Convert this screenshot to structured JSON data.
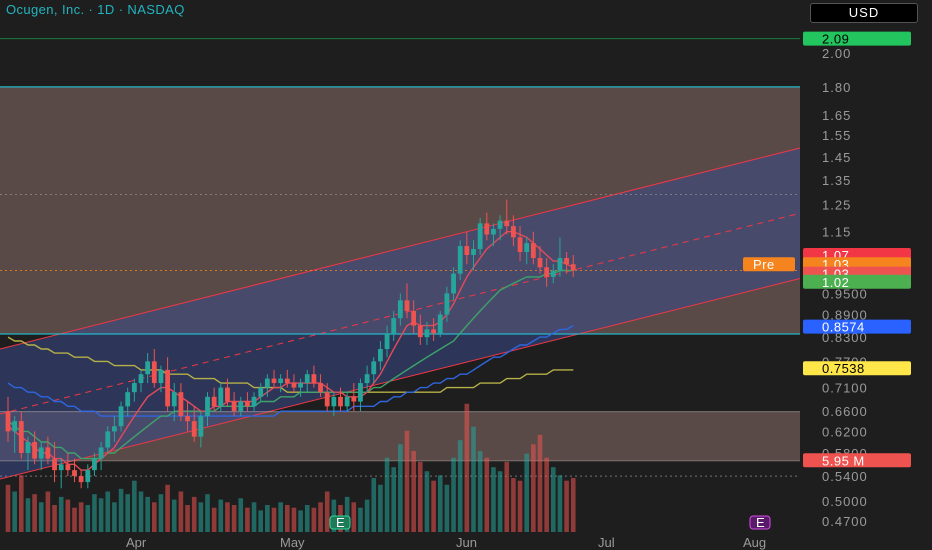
{
  "header": {
    "title": "Ocugen, Inc. · 1D · NASDAQ",
    "currency": "USD"
  },
  "colors": {
    "background": "#1e1e1e",
    "up": "#26a69a",
    "down": "#ef5350",
    "channel_line": "#f23645",
    "channel_fill": "#3a4a8a",
    "zone_fill": "#6e5a55",
    "level_line": "#22c3d6",
    "ma_fast": "#e24b5a",
    "ma_mid": "#3ea36a",
    "ma_slow": "#2f66e0",
    "ma_long": "#b5b048"
  },
  "chart_data": {
    "type": "candlestick",
    "title": "Ocugen, Inc. · 1D · NASDAQ",
    "y_scale": "log",
    "ylim": [
      0.45,
      2.2
    ],
    "y_ticks": [
      "2.00",
      "1.80",
      "1.65",
      "1.55",
      "1.45",
      "1.35",
      "1.25",
      "1.15",
      "0.9500",
      "0.8900",
      "0.8300",
      "0.7700",
      "0.7100",
      "0.6600",
      "0.6200",
      "0.5800",
      "0.5400",
      "0.5000",
      "0.4700"
    ],
    "x_ticks": [
      "Apr",
      "May",
      "Jun",
      "Jul",
      "Aug"
    ],
    "price_tags": [
      {
        "label": "2.09",
        "value": 2.09,
        "bg": "#22c55e",
        "fg": "#000000"
      },
      {
        "label": "1.07",
        "value": 1.07,
        "bg": "#f23645",
        "fg": "#ffffff"
      },
      {
        "label": "1.03",
        "value": 1.04,
        "bg": "#f5841f",
        "fg": "#ffffff"
      },
      {
        "label": "1.03",
        "value": 1.01,
        "bg": "#ef5350",
        "fg": "#ffffff"
      },
      {
        "label": "1.02",
        "value": 0.985,
        "bg": "#4caf50",
        "fg": "#ffffff"
      },
      {
        "label": "0.8574",
        "value": 0.8574,
        "bg": "#2962ff",
        "fg": "#ffffff"
      },
      {
        "label": "0.7538",
        "value": 0.7538,
        "bg": "#ffe74a",
        "fg": "#000000"
      },
      {
        "label": "5.95 M",
        "value": 0.567,
        "bg": "#ef5350",
        "fg": "#ffffff"
      }
    ],
    "pre_label": "Pre",
    "earnings_marker": "E",
    "levels": [
      1.8,
      0.838,
      0.659,
      0.566
    ],
    "candles": [
      [
        0.66,
        0.69,
        0.6,
        0.62
      ],
      [
        0.62,
        0.65,
        0.58,
        0.64
      ],
      [
        0.64,
        0.66,
        0.57,
        0.58
      ],
      [
        0.58,
        0.61,
        0.55,
        0.6
      ],
      [
        0.6,
        0.62,
        0.56,
        0.57
      ],
      [
        0.57,
        0.6,
        0.55,
        0.59
      ],
      [
        0.59,
        0.61,
        0.56,
        0.57
      ],
      [
        0.57,
        0.6,
        0.53,
        0.55
      ],
      [
        0.55,
        0.57,
        0.52,
        0.56
      ],
      [
        0.56,
        0.58,
        0.54,
        0.55
      ],
      [
        0.55,
        0.57,
        0.53,
        0.54
      ],
      [
        0.54,
        0.55,
        0.52,
        0.53
      ],
      [
        0.53,
        0.56,
        0.52,
        0.55
      ],
      [
        0.55,
        0.58,
        0.54,
        0.57
      ],
      [
        0.57,
        0.6,
        0.55,
        0.59
      ],
      [
        0.59,
        0.63,
        0.58,
        0.62
      ],
      [
        0.62,
        0.65,
        0.6,
        0.63
      ],
      [
        0.63,
        0.68,
        0.62,
        0.67
      ],
      [
        0.67,
        0.71,
        0.65,
        0.7
      ],
      [
        0.7,
        0.73,
        0.68,
        0.72
      ],
      [
        0.72,
        0.75,
        0.7,
        0.74
      ],
      [
        0.74,
        0.79,
        0.72,
        0.77
      ],
      [
        0.77,
        0.8,
        0.71,
        0.72
      ],
      [
        0.72,
        0.76,
        0.7,
        0.75
      ],
      [
        0.75,
        0.78,
        0.66,
        0.67
      ],
      [
        0.67,
        0.72,
        0.64,
        0.7
      ],
      [
        0.7,
        0.72,
        0.64,
        0.65
      ],
      [
        0.65,
        0.68,
        0.62,
        0.64
      ],
      [
        0.64,
        0.67,
        0.6,
        0.61
      ],
      [
        0.61,
        0.66,
        0.59,
        0.65
      ],
      [
        0.65,
        0.7,
        0.63,
        0.69
      ],
      [
        0.69,
        0.71,
        0.66,
        0.67
      ],
      [
        0.67,
        0.72,
        0.66,
        0.71
      ],
      [
        0.71,
        0.73,
        0.67,
        0.68
      ],
      [
        0.68,
        0.7,
        0.65,
        0.66
      ],
      [
        0.66,
        0.69,
        0.65,
        0.68
      ],
      [
        0.68,
        0.7,
        0.66,
        0.67
      ],
      [
        0.67,
        0.7,
        0.66,
        0.69
      ],
      [
        0.69,
        0.72,
        0.68,
        0.71
      ],
      [
        0.71,
        0.74,
        0.69,
        0.73
      ],
      [
        0.73,
        0.75,
        0.71,
        0.72
      ],
      [
        0.72,
        0.74,
        0.7,
        0.73
      ],
      [
        0.73,
        0.75,
        0.71,
        0.72
      ],
      [
        0.72,
        0.74,
        0.7,
        0.71
      ],
      [
        0.71,
        0.73,
        0.69,
        0.72
      ],
      [
        0.72,
        0.75,
        0.7,
        0.74
      ],
      [
        0.74,
        0.76,
        0.71,
        0.72
      ],
      [
        0.72,
        0.74,
        0.69,
        0.7
      ],
      [
        0.7,
        0.72,
        0.66,
        0.67
      ],
      [
        0.67,
        0.7,
        0.65,
        0.69
      ],
      [
        0.69,
        0.71,
        0.66,
        0.67
      ],
      [
        0.67,
        0.7,
        0.66,
        0.69
      ],
      [
        0.69,
        0.72,
        0.66,
        0.68
      ],
      [
        0.68,
        0.73,
        0.66,
        0.72
      ],
      [
        0.72,
        0.76,
        0.7,
        0.74
      ],
      [
        0.74,
        0.78,
        0.72,
        0.77
      ],
      [
        0.77,
        0.82,
        0.75,
        0.8
      ],
      [
        0.8,
        0.86,
        0.78,
        0.84
      ],
      [
        0.84,
        0.9,
        0.82,
        0.88
      ],
      [
        0.88,
        0.95,
        0.86,
        0.93
      ],
      [
        0.93,
        0.98,
        0.88,
        0.9
      ],
      [
        0.9,
        0.93,
        0.84,
        0.86
      ],
      [
        0.86,
        0.89,
        0.81,
        0.83
      ],
      [
        0.83,
        0.87,
        0.81,
        0.85
      ],
      [
        0.85,
        0.88,
        0.82,
        0.84
      ],
      [
        0.84,
        0.9,
        0.83,
        0.89
      ],
      [
        0.89,
        0.97,
        0.87,
        0.95
      ],
      [
        0.95,
        1.03,
        0.93,
        1.01
      ],
      [
        1.01,
        1.12,
        0.99,
        1.1
      ],
      [
        1.1,
        1.15,
        1.04,
        1.07
      ],
      [
        1.07,
        1.12,
        1.02,
        1.09
      ],
      [
        1.09,
        1.2,
        1.07,
        1.18
      ],
      [
        1.18,
        1.22,
        1.12,
        1.14
      ],
      [
        1.14,
        1.18,
        1.1,
        1.16
      ],
      [
        1.16,
        1.21,
        1.12,
        1.19
      ],
      [
        1.19,
        1.27,
        1.14,
        1.17
      ],
      [
        1.17,
        1.21,
        1.1,
        1.13
      ],
      [
        1.13,
        1.17,
        1.05,
        1.08
      ],
      [
        1.08,
        1.13,
        1.04,
        1.11
      ],
      [
        1.11,
        1.15,
        1.04,
        1.06
      ],
      [
        1.06,
        1.1,
        1.01,
        1.03
      ],
      [
        1.03,
        1.06,
        0.97,
        1.0
      ],
      [
        1.0,
        1.04,
        0.98,
        1.02
      ],
      [
        1.02,
        1.13,
        1.0,
        1.06
      ],
      [
        1.06,
        1.08,
        1.01,
        1.04
      ],
      [
        1.04,
        1.07,
        1.0,
        1.02
      ]
    ],
    "ma_fast": [
      0.63,
      0.62,
      0.61,
      0.6,
      0.59,
      0.58,
      0.58,
      0.57,
      0.57,
      0.56,
      0.56,
      0.55,
      0.55,
      0.56,
      0.57,
      0.58,
      0.59,
      0.61,
      0.63,
      0.65,
      0.67,
      0.69,
      0.7,
      0.71,
      0.71,
      0.7,
      0.69,
      0.68,
      0.67,
      0.66,
      0.66,
      0.67,
      0.67,
      0.68,
      0.68,
      0.68,
      0.68,
      0.68,
      0.69,
      0.7,
      0.71,
      0.71,
      0.72,
      0.72,
      0.72,
      0.72,
      0.72,
      0.72,
      0.71,
      0.7,
      0.7,
      0.69,
      0.69,
      0.69,
      0.7,
      0.72,
      0.74,
      0.77,
      0.8,
      0.83,
      0.86,
      0.87,
      0.86,
      0.86,
      0.86,
      0.87,
      0.89,
      0.92,
      0.96,
      1.0,
      1.03,
      1.06,
      1.09,
      1.11,
      1.13,
      1.15,
      1.15,
      1.14,
      1.13,
      1.11,
      1.09,
      1.07,
      1.05,
      1.05,
      1.04,
      1.03
    ],
    "ma_mid": [
      0.64,
      0.63,
      0.62,
      0.62,
      0.61,
      0.6,
      0.6,
      0.59,
      0.59,
      0.58,
      0.58,
      0.57,
      0.57,
      0.57,
      0.57,
      0.58,
      0.58,
      0.59,
      0.6,
      0.61,
      0.62,
      0.63,
      0.64,
      0.65,
      0.65,
      0.66,
      0.66,
      0.66,
      0.66,
      0.66,
      0.66,
      0.66,
      0.67,
      0.67,
      0.67,
      0.67,
      0.67,
      0.67,
      0.68,
      0.68,
      0.68,
      0.69,
      0.69,
      0.69,
      0.7,
      0.7,
      0.7,
      0.7,
      0.7,
      0.7,
      0.7,
      0.7,
      0.7,
      0.7,
      0.7,
      0.71,
      0.71,
      0.72,
      0.73,
      0.74,
      0.75,
      0.76,
      0.77,
      0.78,
      0.79,
      0.8,
      0.81,
      0.82,
      0.84,
      0.86,
      0.88,
      0.9,
      0.92,
      0.94,
      0.96,
      0.97,
      0.98,
      0.99,
      1.0,
      1.0,
      1.0,
      1.01,
      1.01,
      1.02,
      1.02,
      1.02
    ],
    "ma_slow": [
      0.72,
      0.71,
      0.71,
      0.7,
      0.7,
      0.69,
      0.69,
      0.68,
      0.68,
      0.67,
      0.67,
      0.66,
      0.66,
      0.66,
      0.65,
      0.65,
      0.65,
      0.65,
      0.65,
      0.65,
      0.65,
      0.65,
      0.65,
      0.65,
      0.65,
      0.65,
      0.65,
      0.65,
      0.65,
      0.65,
      0.65,
      0.65,
      0.65,
      0.65,
      0.65,
      0.65,
      0.65,
      0.65,
      0.65,
      0.65,
      0.65,
      0.66,
      0.66,
      0.66,
      0.66,
      0.66,
      0.66,
      0.66,
      0.66,
      0.66,
      0.66,
      0.66,
      0.67,
      0.67,
      0.67,
      0.67,
      0.68,
      0.68,
      0.69,
      0.69,
      0.7,
      0.7,
      0.71,
      0.71,
      0.72,
      0.72,
      0.73,
      0.73,
      0.74,
      0.74,
      0.75,
      0.76,
      0.77,
      0.78,
      0.78,
      0.79,
      0.8,
      0.81,
      0.81,
      0.82,
      0.83,
      0.83,
      0.84,
      0.85,
      0.85,
      0.86
    ],
    "ma_long": [
      0.83,
      0.82,
      0.82,
      0.81,
      0.81,
      0.8,
      0.8,
      0.79,
      0.79,
      0.79,
      0.78,
      0.78,
      0.78,
      0.77,
      0.77,
      0.77,
      0.76,
      0.76,
      0.76,
      0.76,
      0.75,
      0.75,
      0.75,
      0.75,
      0.74,
      0.74,
      0.74,
      0.74,
      0.73,
      0.73,
      0.73,
      0.73,
      0.72,
      0.72,
      0.72,
      0.72,
      0.72,
      0.71,
      0.71,
      0.71,
      0.71,
      0.71,
      0.7,
      0.7,
      0.7,
      0.7,
      0.7,
      0.7,
      0.7,
      0.7,
      0.7,
      0.7,
      0.7,
      0.7,
      0.7,
      0.7,
      0.7,
      0.7,
      0.7,
      0.7,
      0.7,
      0.7,
      0.7,
      0.7,
      0.7,
      0.7,
      0.71,
      0.71,
      0.71,
      0.71,
      0.71,
      0.72,
      0.72,
      0.72,
      0.72,
      0.73,
      0.73,
      0.73,
      0.74,
      0.74,
      0.74,
      0.74,
      0.75,
      0.75,
      0.75,
      0.75
    ],
    "volumes": [
      0.35,
      0.3,
      0.42,
      0.25,
      0.28,
      0.22,
      0.3,
      0.2,
      0.26,
      0.24,
      0.18,
      0.22,
      0.2,
      0.28,
      0.25,
      0.3,
      0.22,
      0.32,
      0.28,
      0.38,
      0.3,
      0.26,
      0.22,
      0.28,
      0.35,
      0.24,
      0.3,
      0.2,
      0.26,
      0.22,
      0.28,
      0.18,
      0.24,
      0.22,
      0.2,
      0.25,
      0.18,
      0.22,
      0.16,
      0.2,
      0.18,
      0.22,
      0.2,
      0.18,
      0.16,
      0.2,
      0.18,
      0.22,
      0.3,
      0.24,
      0.2,
      0.26,
      0.22,
      0.18,
      0.24,
      0.4,
      0.35,
      0.55,
      0.48,
      0.65,
      0.75,
      0.6,
      0.52,
      0.45,
      0.38,
      0.42,
      0.35,
      0.55,
      0.68,
      0.95,
      0.78,
      0.6,
      0.55,
      0.48,
      0.45,
      0.52,
      0.4,
      0.38,
      0.58,
      0.65,
      0.72,
      0.55,
      0.48,
      0.42,
      0.38,
      0.4
    ]
  },
  "x_axis": {
    "labels": [
      "Apr",
      "May",
      "Jun",
      "Jul",
      "Aug"
    ]
  }
}
